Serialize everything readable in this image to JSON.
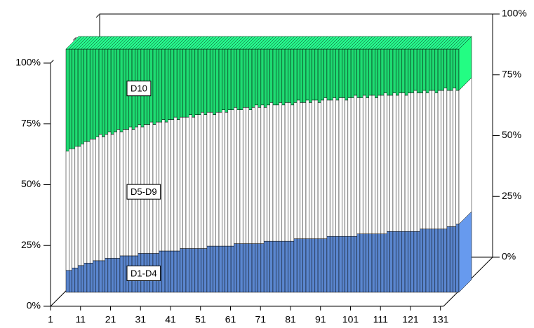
{
  "chart_data": {
    "type": "bar3d_stacked",
    "categories": [
      "1",
      null,
      null,
      null,
      null,
      null,
      null,
      null,
      null,
      null,
      "11",
      null,
      null,
      null,
      null,
      null,
      null,
      null,
      null,
      null,
      "21",
      null,
      null,
      null,
      null,
      null,
      null,
      null,
      null,
      null,
      "31",
      null,
      null,
      null,
      null,
      null,
      null,
      null,
      null,
      null,
      "41",
      null,
      null,
      null,
      null,
      null,
      null,
      null,
      null,
      null,
      "51",
      null,
      null,
      null,
      null,
      null,
      null,
      null,
      null,
      null,
      "61",
      null,
      null,
      null,
      null,
      null,
      null,
      null,
      null,
      null,
      "71",
      null,
      null,
      null,
      null,
      null,
      null,
      null,
      null,
      null,
      "81",
      null,
      null,
      null,
      null,
      null,
      null,
      null,
      null,
      null,
      "91",
      null,
      null,
      null,
      null,
      null,
      null,
      null,
      null,
      null,
      "101",
      null,
      null,
      null,
      null,
      null,
      null,
      null,
      null,
      null,
      "111",
      null,
      null,
      null,
      null,
      null,
      null,
      null,
      null,
      null,
      "121",
      null,
      null,
      null,
      null,
      null,
      null,
      null,
      null,
      null,
      "131"
    ],
    "series": [
      {
        "name": "D1-D4",
        "color": "#5a86cf",
        "values": [
          9,
          9,
          10,
          10,
          11,
          11,
          12,
          12,
          12,
          13,
          13,
          13,
          13,
          14,
          14,
          14,
          14,
          14,
          15,
          15,
          15,
          15,
          15,
          15,
          16,
          16,
          16,
          16,
          16,
          16,
          16,
          17,
          17,
          17,
          17,
          17,
          17,
          17,
          18,
          18,
          18,
          18,
          18,
          18,
          18,
          18,
          18,
          19,
          19,
          19,
          19,
          19,
          19,
          19,
          19,
          19,
          20,
          20,
          20,
          20,
          20,
          20,
          20,
          20,
          20,
          20,
          21,
          21,
          21,
          21,
          21,
          21,
          21,
          21,
          21,
          21,
          22,
          22,
          22,
          22,
          22,
          22,
          22,
          22,
          22,
          22,
          22,
          23,
          23,
          23,
          23,
          23,
          23,
          23,
          23,
          23,
          23,
          24,
          24,
          24,
          24,
          24,
          24,
          24,
          24,
          24,
          24,
          25,
          25,
          25,
          25,
          25,
          25,
          25,
          25,
          25,
          25,
          25,
          26,
          26,
          26,
          26,
          26,
          26,
          26,
          26,
          26,
          27,
          27,
          27,
          28
        ]
      },
      {
        "name": "D5-D9",
        "color": "#ffffff",
        "values": [
          49,
          50,
          49,
          50,
          49,
          50,
          50,
          50,
          51,
          50,
          51,
          52,
          51,
          51,
          52,
          51,
          52,
          53,
          51,
          52,
          52,
          53,
          52,
          53,
          53,
          52,
          53,
          53,
          54,
          53,
          54,
          53,
          54,
          53,
          54,
          54,
          55,
          54,
          54,
          54,
          54,
          55,
          54,
          55,
          55,
          56,
          55,
          55,
          55,
          54,
          55,
          55,
          56,
          55,
          56,
          56,
          56,
          55,
          55,
          56,
          56,
          55,
          56,
          57,
          56,
          57,
          55,
          56,
          57,
          56,
          56,
          57,
          56,
          57,
          57,
          56,
          56,
          57,
          56,
          56,
          57,
          56,
          57,
          57,
          56,
          57,
          58,
          56,
          56,
          57,
          56,
          57,
          57,
          56,
          57,
          57,
          58,
          56,
          56,
          57,
          56,
          57,
          57,
          56,
          57,
          57,
          58,
          56,
          56,
          57,
          56,
          57,
          57,
          56,
          57,
          57,
          58,
          57,
          56,
          57,
          56,
          57,
          57,
          56,
          57,
          57,
          58,
          56,
          56,
          57,
          55
        ]
      },
      {
        "name": "D10",
        "color": "#1edc72",
        "values": [
          42,
          41,
          41,
          40,
          40,
          39,
          38,
          38,
          37,
          37,
          36,
          35,
          36,
          35,
          34,
          35,
          34,
          33,
          34,
          33,
          33,
          32,
          33,
          32,
          31,
          32,
          31,
          31,
          30,
          31,
          30,
          30,
          29,
          30,
          29,
          29,
          28,
          29,
          28,
          28,
          28,
          27,
          28,
          27,
          27,
          26,
          27,
          26,
          26,
          27,
          26,
          26,
          25,
          26,
          25,
          25,
          24,
          25,
          25,
          24,
          24,
          25,
          24,
          23,
          24,
          23,
          24,
          23,
          22,
          23,
          23,
          22,
          23,
          22,
          22,
          23,
          22,
          21,
          22,
          22,
          21,
          22,
          21,
          21,
          22,
          21,
          20,
          21,
          21,
          20,
          21,
          20,
          20,
          21,
          20,
          20,
          19,
          20,
          20,
          19,
          20,
          19,
          19,
          20,
          19,
          19,
          18,
          19,
          19,
          18,
          19,
          18,
          18,
          19,
          18,
          18,
          17,
          18,
          18,
          17,
          18,
          17,
          17,
          18,
          17,
          17,
          16,
          17,
          17,
          16,
          17
        ]
      }
    ],
    "ylim": [
      0,
      100
    ],
    "yticks": [
      {
        "value": 0,
        "label": "0%"
      },
      {
        "value": 25,
        "label": "25%"
      },
      {
        "value": 50,
        "label": "50%"
      },
      {
        "value": 75,
        "label": "75%"
      },
      {
        "value": 100,
        "label": "100%"
      }
    ],
    "y2lim": [
      0,
      100
    ],
    "y2ticks": [
      {
        "value": 0,
        "label": "0%"
      },
      {
        "value": 25,
        "label": "25%"
      },
      {
        "value": 50,
        "label": "50%"
      },
      {
        "value": 75,
        "label": "75%"
      },
      {
        "value": 100,
        "label": "100%"
      }
    ]
  }
}
